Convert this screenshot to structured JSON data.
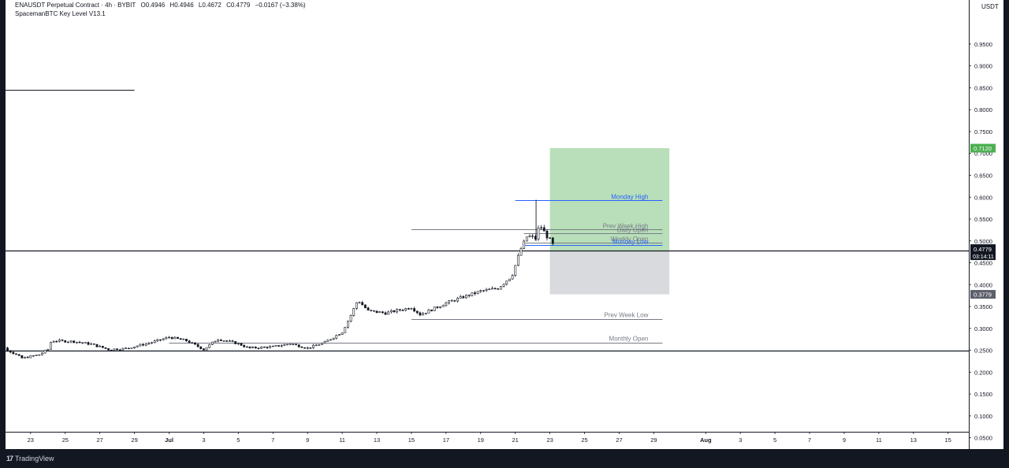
{
  "legend": {
    "symbol_title": "ENAUSDT Perpetual Contract · 4h · BYBIT",
    "open": "O0.4946",
    "high": "H0.4946",
    "low": "L0.4672",
    "close": "C0.4779",
    "change": "−0.0167 (−3.38%)",
    "indicator": "SpacemanBTC Key Level V13.1"
  },
  "currency_label": "USDT",
  "footer": {
    "logo": "17",
    "brand": "TradingView"
  },
  "colors": {
    "background": "#131722",
    "chart_bg": "#ffffff",
    "candle": "#131722",
    "tp_zone": "#b8dfb9",
    "sl_zone": "#d9dadd",
    "monday_line": "#2962ff",
    "gray_line": "#787b86",
    "last_price_badge": "#131722",
    "tp_badge": "#4caf50",
    "gray_badge": "#5d606b"
  },
  "chart_data": {
    "type": "candlestick",
    "timeframe": "4h",
    "ylim": [
      0,
      1.0
    ],
    "y_ticks": [
      "0.9500",
      "0.9000",
      "0.8500",
      "0.8000",
      "0.7500",
      "0.7000",
      "0.6500",
      "0.6000",
      "0.5500",
      "0.5000",
      "0.4500",
      "0.4000",
      "0.3500",
      "0.3000",
      "0.2500",
      "0.2000",
      "0.1500",
      "0.1000",
      "0.0500"
    ],
    "x_ticks": [
      "23",
      "25",
      "27",
      "29",
      "Jul",
      "3",
      "5",
      "7",
      "9",
      "11",
      "13",
      "15",
      "17",
      "19",
      "21",
      "23",
      "25",
      "27",
      "29",
      "Aug",
      "3",
      "5",
      "7",
      "9",
      "11",
      "13",
      "15"
    ],
    "x_ticks_day": [
      -8,
      -6,
      -4,
      -2,
      0,
      2,
      4,
      6,
      8,
      10,
      12,
      14,
      16,
      18,
      20,
      22,
      24,
      26,
      28,
      31,
      33,
      35,
      37,
      39,
      41,
      43,
      45
    ],
    "price_path": [
      [
        -10.5,
        0.267
      ],
      [
        -9.5,
        0.255
      ],
      [
        -8.5,
        0.232
      ],
      [
        -7.5,
        0.24
      ],
      [
        -7.0,
        0.252
      ],
      [
        -6.8,
        0.272
      ],
      [
        -5.5,
        0.27
      ],
      [
        -4.5,
        0.264
      ],
      [
        -3.5,
        0.252
      ],
      [
        -2.5,
        0.254
      ],
      [
        -1.0,
        0.268
      ],
      [
        0.0,
        0.28
      ],
      [
        1.0,
        0.272
      ],
      [
        2.0,
        0.252
      ],
      [
        2.8,
        0.276
      ],
      [
        4.0,
        0.265
      ],
      [
        4.6,
        0.255
      ],
      [
        6.0,
        0.258
      ],
      [
        7.0,
        0.265
      ],
      [
        8.0,
        0.255
      ],
      [
        9.0,
        0.268
      ],
      [
        10.0,
        0.292
      ],
      [
        10.5,
        0.33
      ],
      [
        10.9,
        0.365
      ],
      [
        11.5,
        0.34
      ],
      [
        12.5,
        0.335
      ],
      [
        14.0,
        0.348
      ],
      [
        14.5,
        0.332
      ],
      [
        15.0,
        0.34
      ],
      [
        16.0,
        0.358
      ],
      [
        17.0,
        0.372
      ],
      [
        18.0,
        0.385
      ],
      [
        19.0,
        0.392
      ],
      [
        19.8,
        0.42
      ],
      [
        20.3,
        0.48
      ],
      [
        20.7,
        0.512
      ],
      [
        21.2,
        0.505
      ],
      [
        21.4,
        0.538
      ],
      [
        21.8,
        0.512
      ],
      [
        22.1,
        0.498
      ],
      [
        22.3,
        0.478
      ]
    ],
    "last_price": "0.4779",
    "countdown": "03:14:11",
    "horizontal_lines": [
      {
        "label": "",
        "y": 0.4779,
        "full": true,
        "color": "#131722"
      },
      {
        "label": "",
        "y": 0.2485,
        "full": true,
        "color": "#131722"
      },
      {
        "label": "Monday High",
        "y": 0.5925,
        "x_from": 20.0,
        "x_to": 28.5,
        "color": "#2962ff"
      },
      {
        "label": "Prev Week High",
        "y": 0.5258,
        "x_from": 14.0,
        "x_to": 28.5,
        "color": "#787b86"
      },
      {
        "label": "Daily Open",
        "y": 0.517,
        "x_from": 20.5,
        "x_to": 28.5,
        "color": "#787b86"
      },
      {
        "label": "Weekly Open",
        "y": 0.496,
        "x_from": 20.5,
        "x_to": 28.5,
        "color": "#787b86"
      },
      {
        "label": "Monday Low",
        "y": 0.49,
        "x_from": 20.5,
        "x_to": 28.5,
        "color": "#2962ff"
      },
      {
        "label": "Prev Week Low",
        "y": 0.322,
        "x_from": 14.0,
        "x_to": 28.5,
        "color": "#787b86"
      },
      {
        "label": "Monthly Open",
        "y": 0.268,
        "x_from": 0.0,
        "x_to": 28.5,
        "color": "#787b86"
      },
      {
        "label": "",
        "y": 0.846,
        "x_from": -11.0,
        "x_to": -2.0,
        "color": "#131722"
      }
    ],
    "position": {
      "entry": 0.4769,
      "take_profit": 0.712,
      "stop_loss": 0.3779,
      "x_from": 22.0,
      "x_to": 28.9
    },
    "badges": [
      {
        "text": "0.7120",
        "y": 0.712,
        "kind": "tp"
      },
      {
        "text": "0.4769",
        "y": 0.4769,
        "kind": "gray"
      },
      {
        "text": "0.3779",
        "y": 0.3779,
        "kind": "gray"
      }
    ]
  }
}
